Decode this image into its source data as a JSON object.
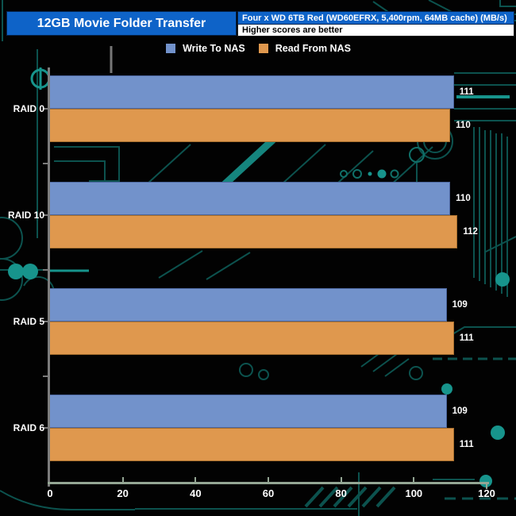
{
  "header": {
    "title": "12GB Movie Folder Transfer",
    "subtitle": "Four x WD 6TB Red (WD60EFRX, 5,400rpm, 64MB cache) (MB/s)",
    "note": "Higher scores are better"
  },
  "chart_data": {
    "type": "bar",
    "orientation": "horizontal",
    "title": "12GB Movie Folder Transfer",
    "subtitle": "Four x WD 6TB Red (WD60EFRX, 5,400rpm, 64MB cache) (MB/s)",
    "note": "Higher scores are better",
    "units": "MB/s",
    "categories": [
      "RAID 0",
      "RAID 10",
      "RAID 5",
      "RAID 6"
    ],
    "series": [
      {
        "name": "Write To NAS",
        "color": "#7292CB",
        "border_color": "#4d67a0",
        "values": [
          111,
          110,
          109,
          109
        ]
      },
      {
        "name": "Read From NAS",
        "color": "#DF984E",
        "border_color": "#a8702f",
        "values": [
          110,
          112,
          111,
          111
        ]
      }
    ],
    "xlim": [
      0,
      120
    ],
    "xticks": [
      0,
      20,
      40,
      60,
      80,
      100,
      120
    ],
    "value_labels": true,
    "legend_position": "top-center",
    "grid": false
  },
  "colors": {
    "background": "#020202",
    "banner_blue": "#0E63C8",
    "note_bg": "#FFFFFF",
    "text": "#FFFFFF",
    "x_axis": "#94A694",
    "y_axis": "#7C7C7C",
    "circuit_dim": "#0C524E",
    "circuit_mid": "#107069",
    "circuit_bright": "#17948C"
  }
}
